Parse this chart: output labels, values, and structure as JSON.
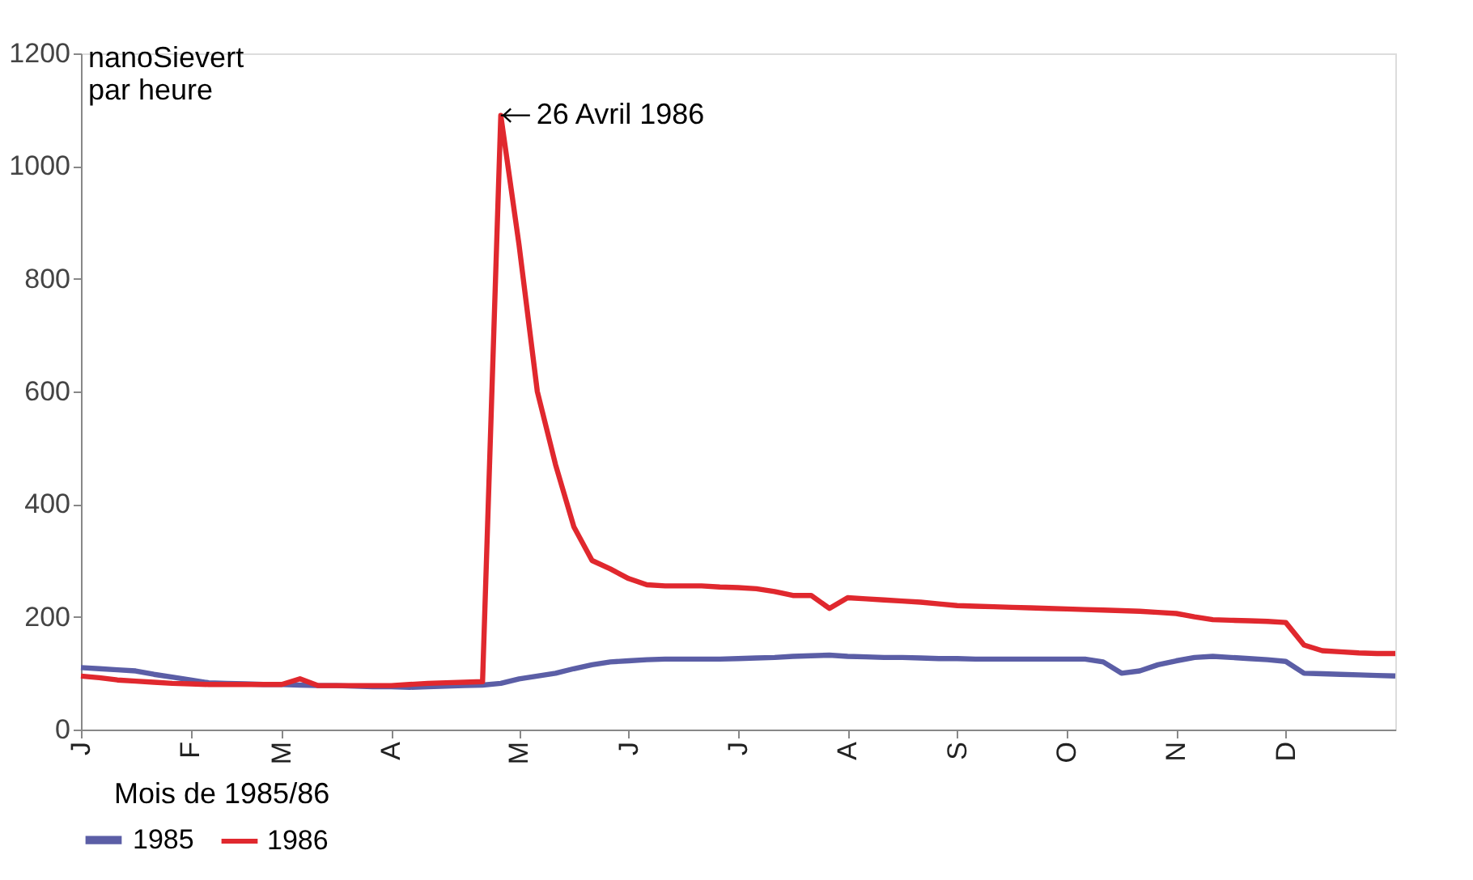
{
  "chart_data": {
    "type": "line",
    "xlabel": "Mois de 1985/86",
    "ylabel": "nanoSievert par heure",
    "ylim": [
      0,
      1200
    ],
    "yticks": [
      0,
      200,
      400,
      600,
      800,
      {
        "value": 1000,
        "label": "1000"
      },
      {
        "value": 1200,
        "label": "1200"
      }
    ],
    "categories": [
      "J",
      null,
      null,
      null,
      null,
      null,
      "F",
      null,
      null,
      null,
      null,
      "M",
      null,
      null,
      null,
      null,
      null,
      "A",
      null,
      null,
      null,
      null,
      null,
      null,
      "M",
      null,
      null,
      null,
      null,
      null,
      "J",
      null,
      null,
      null,
      null,
      null,
      "J",
      null,
      null,
      null,
      null,
      null,
      "A",
      null,
      null,
      null,
      null,
      null,
      "S",
      null,
      null,
      null,
      null,
      null,
      "O",
      null,
      null,
      null,
      null,
      null,
      "N",
      null,
      null,
      null,
      null,
      null,
      "D",
      null,
      null,
      null,
      null,
      null,
      null
    ],
    "grid": false,
    "legend": "bottom",
    "line_style": "solid",
    "marker": "none",
    "annotations": [
      "26 Avril 1986"
    ],
    "series": [
      {
        "name": "1985",
        "color": "#5b5ea6",
        "values": [
          110,
          108,
          106,
          104,
          98,
          93,
          88,
          83,
          82,
          81,
          80,
          80,
          79,
          78,
          78,
          77,
          76,
          76,
          75,
          76,
          77,
          78,
          79,
          82,
          90,
          95,
          100,
          108,
          115,
          120,
          122,
          124,
          125,
          125,
          125,
          125,
          126,
          127,
          128,
          130,
          131,
          132,
          130,
          129,
          128,
          128,
          127,
          126,
          126,
          125,
          125,
          125,
          125,
          125,
          125,
          125,
          120,
          100,
          104,
          115,
          122,
          128,
          130,
          128,
          126,
          124,
          121,
          100,
          99,
          98,
          97,
          96,
          95
        ]
      },
      {
        "name": "1986",
        "color": "#e0282e",
        "values": [
          95,
          92,
          88,
          86,
          84,
          82,
          81,
          80,
          80,
          80,
          80,
          80,
          90,
          78,
          78,
          78,
          78,
          78,
          80,
          82,
          83,
          84,
          85,
          1090,
          860,
          600,
          470,
          360,
          300,
          285,
          268,
          257,
          255,
          255,
          255,
          253,
          252,
          250,
          245,
          238,
          238,
          215,
          234,
          232,
          230,
          228,
          226,
          223,
          220,
          219,
          218,
          217,
          216,
          215,
          214,
          213,
          212,
          211,
          210,
          208,
          206,
          200,
          195,
          194,
          193,
          192,
          190,
          150,
          140,
          138,
          136,
          135,
          135
        ]
      }
    ]
  }
}
